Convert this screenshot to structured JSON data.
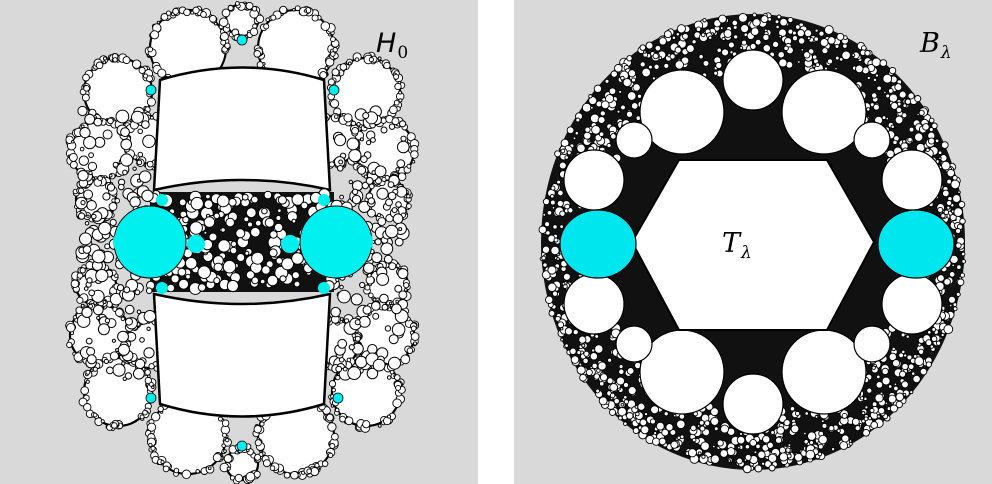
{
  "panels": [
    {
      "id": "left",
      "label_main": "H",
      "label_sub": "0",
      "colors": {
        "background": "#d9d9d9",
        "cusp_fill": "#00f0f0",
        "fractal_line": "#000000",
        "region": "#ffffff"
      }
    },
    {
      "id": "right",
      "label_main": "B",
      "label_sub": "λ",
      "center_label_main": "T",
      "center_label_sub": "λ",
      "colors": {
        "background": "#d9d9d9",
        "cusp_fill": "#00e6ee",
        "fractal_line": "#000000",
        "region": "#ffffff"
      }
    }
  ]
}
